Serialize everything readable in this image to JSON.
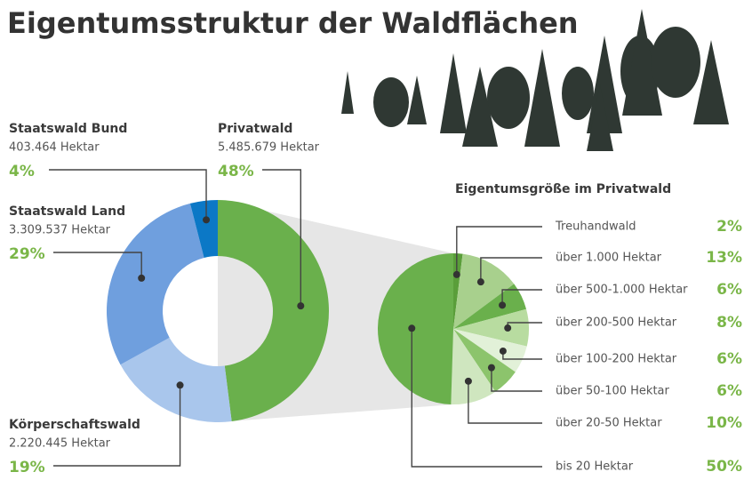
{
  "title": "Eigentumsstruktur der Waldflächen",
  "chart_data": [
    {
      "type": "donut",
      "categories": [
        "Privatwald",
        "Körperschaftswald",
        "Staatswald Land",
        "Staatswald Bund"
      ],
      "area_labels": [
        "5.485.679 Hektar",
        "2.220.445 Hektar",
        "3.309.537 Hektar",
        "403.464 Hektar"
      ],
      "values": [
        48,
        19,
        29,
        4
      ],
      "value_labels": [
        "48%",
        "19%",
        "29%",
        "4%"
      ],
      "colors": [
        "#6ab04c",
        "#a9c6ec",
        "#6f9fde",
        "#0b78c6"
      ]
    },
    {
      "type": "pie",
      "title": "Eigentumsgröße im Privatwald",
      "categories": [
        "Treuhandwald",
        "über 1.000 Hektar",
        "über 500-1.000 Hektar",
        "über 200-500 Hektar",
        "über 100-200 Hektar",
        "über 50-100 Hektar",
        "über 20-50 Hektar",
        "bis 20 Hektar"
      ],
      "values": [
        2,
        13,
        6,
        8,
        6,
        6,
        10,
        50
      ],
      "value_labels": [
        "2%",
        "13%",
        "6%",
        "8%",
        "6%",
        "6%",
        "10%",
        "50%"
      ],
      "colors": [
        "#5a9e3a",
        "#a8d08d",
        "#6ab04c",
        "#b8dca0",
        "#e2f1d8",
        "#8cc46c",
        "#cfe6bf",
        "#6ab04c"
      ]
    }
  ]
}
